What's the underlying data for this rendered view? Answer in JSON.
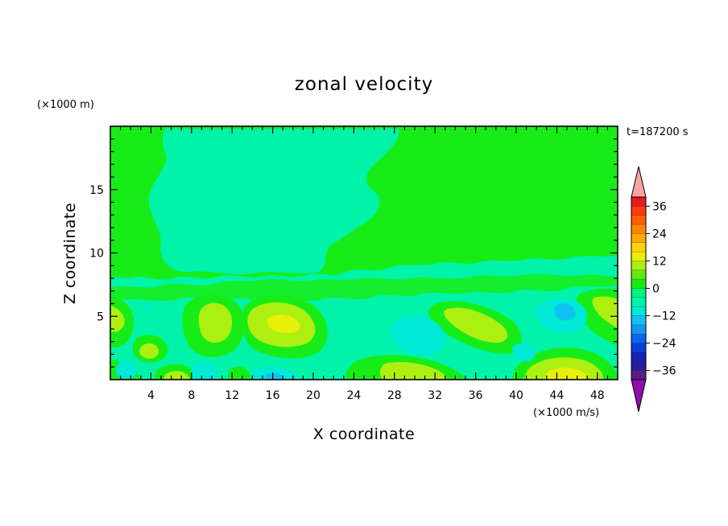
{
  "chart_data": {
    "type": "heatmap",
    "title": "zonal velocity",
    "xlabel": "X coordinate",
    "ylabel": "Z coordinate",
    "x_unit": "(×1000 m/s)",
    "y_unit": "(×1000 m)",
    "time_label": "t=187200 s",
    "xlim": [
      0,
      50
    ],
    "ylim": [
      0,
      20
    ],
    "x_ticks": [
      4,
      8,
      12,
      16,
      20,
      24,
      28,
      32,
      36,
      40,
      44,
      48
    ],
    "y_ticks": [
      5,
      10,
      15
    ],
    "colorbar": {
      "levels": [
        -40,
        -36,
        -32,
        -28,
        -24,
        -20,
        -16,
        -12,
        -8,
        -4,
        0,
        4,
        8,
        12,
        16,
        20,
        24,
        28,
        32,
        36,
        40
      ],
      "tick_labels": [
        "36",
        "24",
        "12",
        "0",
        "−12",
        "−24",
        "−36"
      ],
      "tick_values": [
        36,
        24,
        12,
        0,
        -12,
        -24,
        -36
      ],
      "colors": [
        "#5a1d8a",
        "#2a1a9c",
        "#1224b8",
        "#0a3fd6",
        "#0a66ee",
        "#1296f6",
        "#10c2f2",
        "#00e8d6",
        "#00f3a8",
        "#00f57a",
        "#18ec18",
        "#66e810",
        "#aeef12",
        "#e8ef0a",
        "#ffd20a",
        "#ffaa00",
        "#ff8400",
        "#ff5e00",
        "#ff3a10",
        "#e81a1a"
      ],
      "extend_low_color": "#8e0fa6",
      "extend_high_color": "#f8a4a4"
    },
    "features": [
      {
        "kind": "upper-region",
        "value": 2,
        "desc": "positive zone x 0-50, z 8-20"
      },
      {
        "kind": "patch",
        "value": -2,
        "x": 4,
        "z": 17
      },
      {
        "kind": "patch",
        "value": 6,
        "x": 0.8,
        "z": 4.7
      },
      {
        "kind": "patch",
        "value": 6,
        "x": 4,
        "z": 2.4
      },
      {
        "kind": "patch",
        "value": 6,
        "x": 10,
        "z": 5
      },
      {
        "kind": "patch",
        "value": 10,
        "x": 17,
        "z": 4.7
      },
      {
        "kind": "patch",
        "value": 6,
        "x": 30,
        "z": 1
      },
      {
        "kind": "patch",
        "value": 6,
        "x": 35.5,
        "z": 4.2
      },
      {
        "kind": "patch",
        "value": 10,
        "x": 45,
        "z": 0.6
      },
      {
        "kind": "patch",
        "value": 6,
        "x": 49,
        "z": 5.5
      },
      {
        "kind": "patch",
        "value": -10,
        "x": 30,
        "z": 3.8
      },
      {
        "kind": "patch",
        "value": -10,
        "x": 44,
        "z": 5.4
      },
      {
        "kind": "patch",
        "value": -10,
        "x": 17,
        "z": 0.2
      }
    ]
  }
}
